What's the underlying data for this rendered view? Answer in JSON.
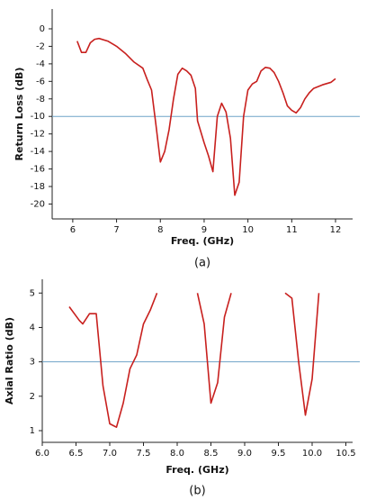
{
  "chart_data": [
    {
      "type": "line",
      "caption": "(a)",
      "xlabel": "Freq. (GHz)",
      "ylabel": "Return Loss (dB)",
      "xlim": [
        5.53,
        12.39
      ],
      "ylim": [
        -21.7,
        2.26
      ],
      "xticks": [
        6,
        7,
        8,
        9,
        10,
        11,
        12
      ],
      "yticks": [
        0,
        -2,
        -4,
        -6,
        -8,
        -10,
        -12,
        -14,
        -16,
        -18,
        -20
      ],
      "reference_line": {
        "value": -10,
        "color": "#6fa3c8"
      },
      "series": [
        {
          "color": "#c8201e",
          "x": [
            6.1,
            6.2,
            6.3,
            6.4,
            6.5,
            6.6,
            6.8,
            7.0,
            7.2,
            7.4,
            7.6,
            7.7,
            7.8,
            7.9,
            8.0,
            8.1,
            8.2,
            8.3,
            8.4,
            8.5,
            8.6,
            8.7,
            8.8,
            8.85,
            9.0,
            9.1,
            9.2,
            9.3,
            9.4,
            9.5,
            9.6,
            9.7,
            9.8,
            9.9,
            10.0,
            10.1,
            10.2,
            10.3,
            10.4,
            10.5,
            10.6,
            10.7,
            10.8,
            10.9,
            11.0,
            11.1,
            11.2,
            11.3,
            11.4,
            11.5,
            11.7,
            11.9,
            12.0
          ],
          "values": [
            -1.4,
            -2.7,
            -2.7,
            -1.6,
            -1.2,
            -1.1,
            -1.4,
            -2,
            -2.8,
            -3.8,
            -4.5,
            -5.8,
            -7,
            -11,
            -15.2,
            -14,
            -11.5,
            -8,
            -5.2,
            -4.5,
            -4.8,
            -5.3,
            -6.8,
            -10.5,
            -13,
            -14.5,
            -16.3,
            -10,
            -8.5,
            -9.5,
            -12.5,
            -19,
            -17.5,
            -10,
            -7,
            -6.3,
            -6,
            -4.8,
            -4.4,
            -4.5,
            -5,
            -6,
            -7.3,
            -8.8,
            -9.3,
            -9.6,
            -9,
            -8,
            -7.3,
            -6.8,
            -6.4,
            -6.1,
            -5.7
          ]
        }
      ]
    },
    {
      "type": "line",
      "caption": "(b)",
      "xlabel": "Freq. (GHz)",
      "ylabel": "Axial Ratio (dB)",
      "xlim": [
        6.0,
        10.6
      ],
      "ylim": [
        0.66,
        5.4
      ],
      "xticks": [
        {
          "value": 6.0,
          "label": "6.0"
        },
        {
          "value": 6.5,
          "label": "6.5"
        },
        {
          "value": 7.0,
          "label": "7.0"
        },
        {
          "value": 7.5,
          "label": "7.5"
        },
        {
          "value": 8.0,
          "label": "8.0"
        },
        {
          "value": 8.5,
          "label": "8.5"
        },
        {
          "value": 9.0,
          "label": "9.0"
        },
        {
          "value": 9.5,
          "label": "9.5"
        },
        {
          "value": 10.0,
          "label": "10.0"
        },
        {
          "value": 10.5,
          "label": "10.5"
        }
      ],
      "yticks": [
        1,
        2,
        3,
        4,
        5
      ],
      "reference_line": {
        "value": 3,
        "color": "#6fa3c8"
      },
      "series": [
        {
          "color": "#c8201e",
          "x": [
            6.4,
            6.55,
            6.6,
            6.7,
            6.8,
            6.9,
            7.0,
            7.1,
            7.2,
            7.3,
            7.4,
            7.5,
            7.6,
            7.7,
            8.0,
            8.3,
            8.4,
            8.5,
            8.6,
            8.7,
            8.8,
            9.2,
            9.6,
            9.7,
            9.8,
            9.9,
            10.0,
            10.1
          ],
          "values": [
            4.6,
            4.2,
            4.1,
            4.4,
            4.4,
            2.3,
            1.2,
            1.1,
            1.8,
            2.8,
            3.2,
            4.1,
            4.5,
            5.0,
            null,
            5.0,
            4.1,
            1.8,
            2.4,
            4.3,
            5.0,
            null,
            5.0,
            4.85,
            3.0,
            1.45,
            2.5,
            5.0
          ]
        }
      ]
    }
  ]
}
